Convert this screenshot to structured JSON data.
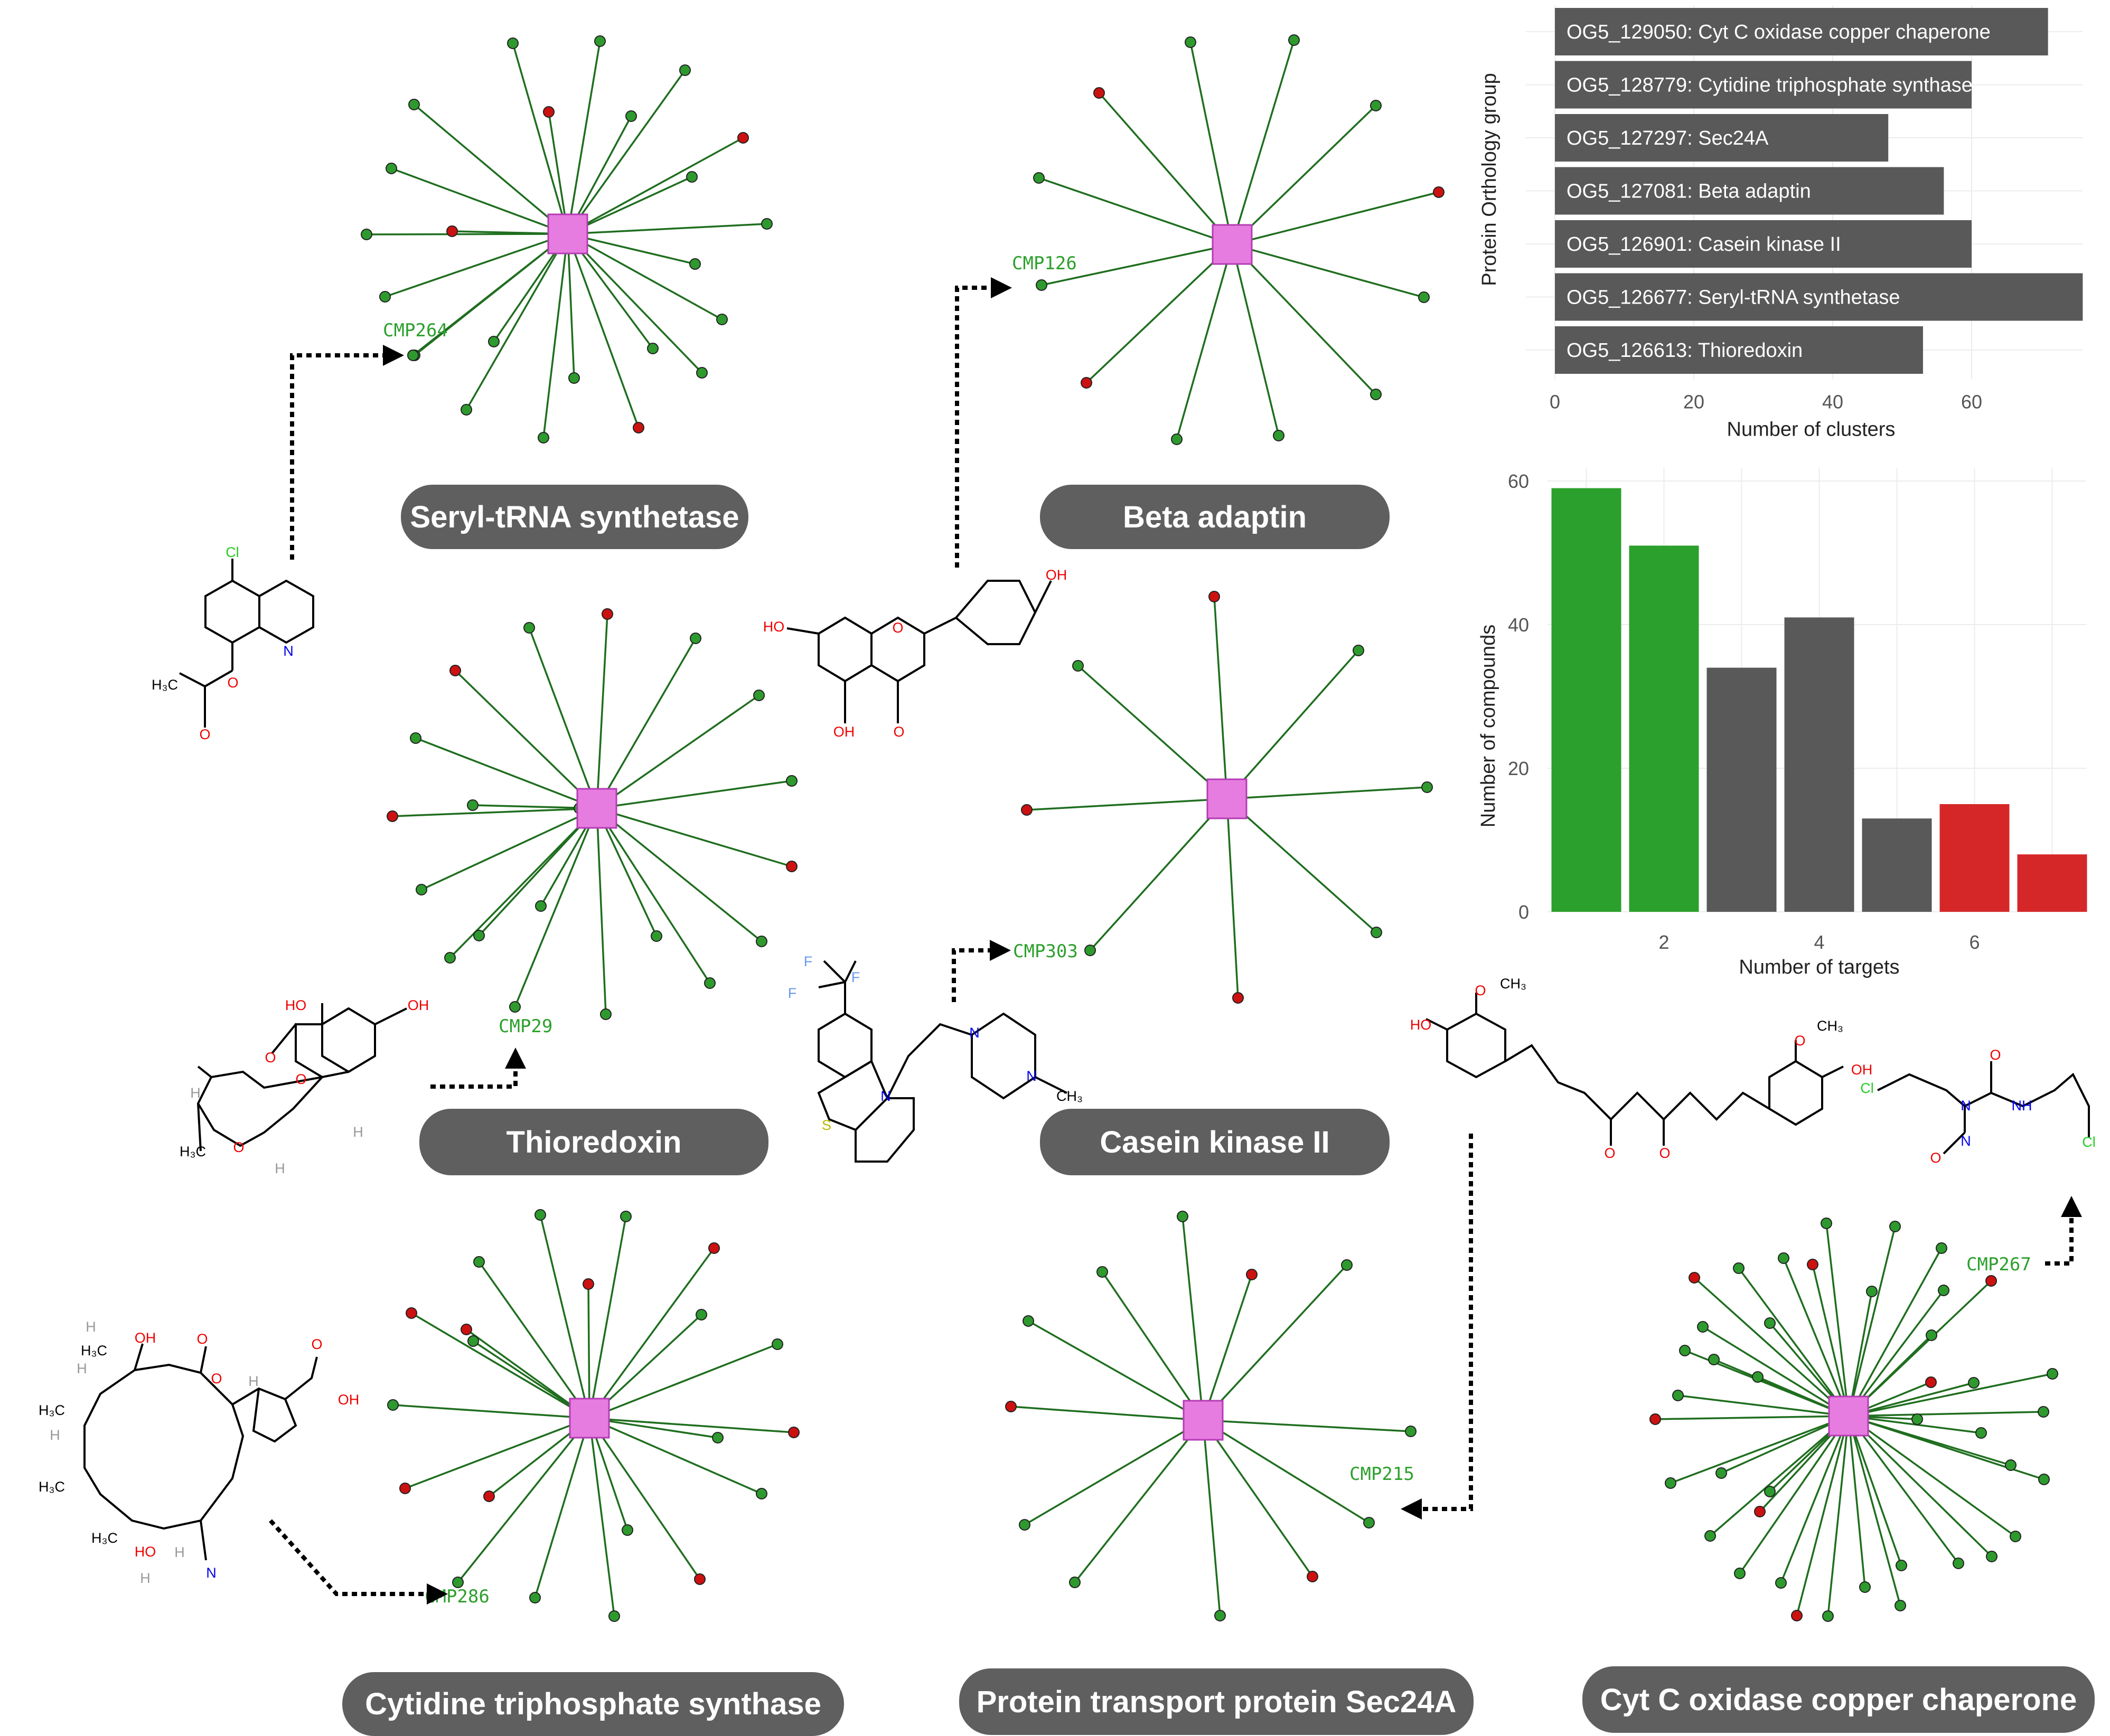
{
  "networks": [
    {
      "name": "Seryl-tRNA synthetase",
      "cx": 1075,
      "cy": 443,
      "spokes": [
        [
          "g",
          -104,
          -361
        ],
        [
          "g",
          61,
          -365
        ],
        [
          "g",
          222,
          -310
        ],
        [
          "g",
          -291,
          -245
        ],
        [
          "r",
          -36,
          -231
        ],
        [
          "g",
          120,
          -223
        ],
        [
          "r",
          332,
          -182
        ],
        [
          "g",
          -334,
          -124
        ],
        [
          "g",
          235,
          -108
        ],
        [
          "g",
          377,
          -19
        ],
        [
          "g",
          -381,
          1
        ],
        [
          "r",
          -219,
          -5
        ],
        [
          "g",
          241,
          57
        ],
        [
          "g",
          -346,
          119
        ],
        [
          "g",
          292,
          162
        ],
        [
          "g",
          -140,
          204
        ],
        [
          "g",
          161,
          217
        ],
        [
          "g",
          -290,
          230
        ],
        [
          "g",
          254,
          263
        ],
        [
          "g",
          12,
          273
        ],
        [
          "g",
          -192,
          333
        ],
        [
          "g",
          -46,
          386
        ],
        [
          "r",
          134,
          367
        ],
        [
          "g",
          -293,
          230
        ]
      ]
    },
    {
      "name": "Beta adaptin",
      "cx": 2333,
      "cy": 463,
      "spokes": [
        [
          "g",
          -79,
          -383
        ],
        [
          "g",
          117,
          -387
        ],
        [
          "r",
          -252,
          -287
        ],
        [
          "g",
          272,
          -263
        ],
        [
          "g",
          -366,
          -126
        ],
        [
          "r",
          391,
          -99
        ],
        [
          "g",
          -361,
          77
        ],
        [
          "g",
          363,
          100
        ],
        [
          "r",
          -276,
          262
        ],
        [
          "g",
          272,
          284
        ],
        [
          "g",
          -105,
          369
        ],
        [
          "g",
          88,
          362
        ]
      ]
    },
    {
      "name": "Thioredoxin",
      "cx": 1130,
      "cy": 1531,
      "spokes": [
        [
          "r",
          20,
          -368
        ],
        [
          "g",
          -128,
          -342
        ],
        [
          "g",
          187,
          -322
        ],
        [
          "r",
          -268,
          -261
        ],
        [
          "g",
          307,
          -214
        ],
        [
          "g",
          -343,
          -133
        ],
        [
          "g",
          369,
          -52
        ],
        [
          "g",
          -235,
          -6
        ],
        [
          "r",
          -387,
          15
        ],
        [
          "g",
          -33,
          0
        ],
        [
          "r",
          369,
          110
        ],
        [
          "g",
          312,
          252
        ],
        [
          "g",
          -332,
          154
        ],
        [
          "g",
          -278,
          283
        ],
        [
          "g",
          214,
          331
        ],
        [
          "g",
          -155,
          376
        ],
        [
          "g",
          17,
          390
        ],
        [
          "g",
          113,
          242
        ],
        [
          "g",
          -223,
          241
        ],
        [
          "g",
          -106,
          185
        ]
      ]
    },
    {
      "name": "Casein kinase II",
      "cx": 2323,
      "cy": 1513,
      "spokes": [
        [
          "r",
          -24,
          -383
        ],
        [
          "g",
          249,
          -281
        ],
        [
          "g",
          -282,
          -252
        ],
        [
          "g",
          379,
          -22
        ],
        [
          "r",
          -379,
          21
        ],
        [
          "g",
          283,
          253
        ],
        [
          "g",
          -259,
          287
        ],
        [
          "r",
          21,
          377
        ]
      ]
    },
    {
      "name": "Cytidine triphosphate synthase",
      "cx": 1116,
      "cy": 2686,
      "spokes": [
        [
          "g",
          -93,
          -385
        ],
        [
          "g",
          69,
          -382
        ],
        [
          "r",
          236,
          -322
        ],
        [
          "r",
          -2,
          -254
        ],
        [
          "g",
          -209,
          -296
        ],
        [
          "g",
          212,
          -196
        ],
        [
          "g",
          356,
          -140
        ],
        [
          "r",
          -337,
          -199
        ],
        [
          "g",
          -220,
          -146
        ],
        [
          "g",
          -372,
          -25
        ],
        [
          "r",
          387,
          27
        ],
        [
          "g",
          243,
          37
        ],
        [
          "r",
          -349,
          133
        ],
        [
          "g",
          326,
          143
        ],
        [
          "r",
          -190,
          148
        ],
        [
          "g",
          -249,
          311
        ],
        [
          "g",
          72,
          212
        ],
        [
          "r",
          209,
          305
        ],
        [
          "g",
          -103,
          340
        ],
        [
          "g",
          47,
          375
        ],
        [
          "r",
          -233,
          -168
        ]
      ]
    },
    {
      "name": "Protein transport protein Sec24A",
      "cx": 2278,
      "cy": 2690,
      "spokes": [
        [
          "g",
          -39,
          -386
        ],
        [
          "r",
          92,
          -276
        ],
        [
          "g",
          272,
          -294
        ],
        [
          "g",
          -191,
          -281
        ],
        [
          "g",
          -331,
          -188
        ],
        [
          "r",
          -364,
          -26
        ],
        [
          "g",
          393,
          21
        ],
        [
          "g",
          -338,
          198
        ],
        [
          "g",
          314,
          194
        ],
        [
          "g",
          -243,
          307
        ],
        [
          "r",
          207,
          296
        ],
        [
          "g",
          32,
          370
        ]
      ]
    },
    {
      "name": "Cyt C oxidase copper chaperone",
      "cx": 3500,
      "cy": 2682,
      "spokes": [
        [
          "g",
          -123,
          -299
        ],
        [
          "g",
          -42,
          -365
        ],
        [
          "g",
          88,
          -359
        ],
        [
          "g",
          176,
          -318
        ],
        [
          "r",
          -68,
          -287
        ],
        [
          "g",
          -208,
          -280
        ],
        [
          "g",
          44,
          -236
        ],
        [
          "r",
          270,
          -256
        ],
        [
          "r",
          -292,
          -262
        ],
        [
          "g",
          157,
          -153
        ],
        [
          "g",
          -276,
          -169
        ],
        [
          "r",
          156,
          -64
        ],
        [
          "g",
          -149,
          -176
        ],
        [
          "g",
          -255,
          -107
        ],
        [
          "g",
          -310,
          -124
        ],
        [
          "g",
          386,
          -80
        ],
        [
          "g",
          237,
          -63
        ],
        [
          "r",
          -366,
          6
        ],
        [
          "g",
          -172,
          -74
        ],
        [
          "g",
          251,
          32
        ],
        [
          "g",
          369,
          -8
        ],
        [
          "g",
          130,
          6
        ],
        [
          "g",
          -323,
          -39
        ],
        [
          "g",
          -241,
          108
        ],
        [
          "g",
          -337,
          127
        ],
        [
          "r",
          -168,
          181
        ],
        [
          "g",
          370,
          120
        ],
        [
          "g",
          307,
          93
        ],
        [
          "g",
          -262,
          227
        ],
        [
          "g",
          316,
          228
        ],
        [
          "g",
          -149,
          143
        ],
        [
          "g",
          208,
          279
        ],
        [
          "g",
          -128,
          316
        ],
        [
          "g",
          100,
          283
        ],
        [
          "r",
          -98,
          378
        ],
        [
          "g",
          31,
          324
        ],
        [
          "g",
          -39,
          379
        ],
        [
          "g",
          98,
          359
        ],
        [
          "g",
          -206,
          298
        ],
        [
          "g",
          271,
          266
        ],
        [
          "g",
          180,
          -238
        ]
      ]
    }
  ],
  "compound_labels": [
    {
      "text": "CMP264",
      "x": 725,
      "y": 637
    },
    {
      "text": "CMP126",
      "x": 1916,
      "y": 510
    },
    {
      "text": "CMP29",
      "x": 944,
      "y": 1955
    },
    {
      "text": "CMP303",
      "x": 1918,
      "y": 1813
    },
    {
      "text": "CMP286",
      "x": 804,
      "y": 3035
    },
    {
      "text": "CMP215",
      "x": 2555,
      "y": 2803
    },
    {
      "text": "CMP267",
      "x": 3723,
      "y": 2406
    }
  ],
  "chart_data": [
    {
      "type": "bar",
      "orientation": "horizontal",
      "categories": [
        "OG5_129050: Cyt C oxidase copper chaperone",
        "OG5_128779: Cytidine triphosphate synthase",
        "OG5_127297: Sec24A",
        "OG5_127081: Beta adaptin",
        "OG5_126901: Casein kinase II",
        "OG5_126677: Seryl-tRNA synthetase",
        "OG5_126613: Thioredoxin"
      ],
      "values": [
        71,
        60,
        48,
        56,
        60,
        76,
        53
      ],
      "xlabel": "Number of clusters",
      "ylabel": "Protein Orthology group",
      "xlim": [
        0,
        76
      ],
      "xticks": [
        0,
        20,
        40,
        60
      ],
      "bar_color": "#595959"
    },
    {
      "type": "bar",
      "categories": [
        1,
        2,
        3,
        4,
        5,
        6,
        7
      ],
      "values": [
        59,
        51,
        34,
        41,
        13,
        15,
        8
      ],
      "colors": [
        "#2ca02c",
        "#2ca02c",
        "#595959",
        "#595959",
        "#595959",
        "#d62728",
        "#d62728"
      ],
      "xlabel": "Number of targets",
      "ylabel": "Number of compounds",
      "ylim": [
        0,
        60
      ],
      "yticks": [
        0,
        20,
        40,
        60
      ],
      "xticks": [
        2,
        4,
        6
      ]
    }
  ]
}
